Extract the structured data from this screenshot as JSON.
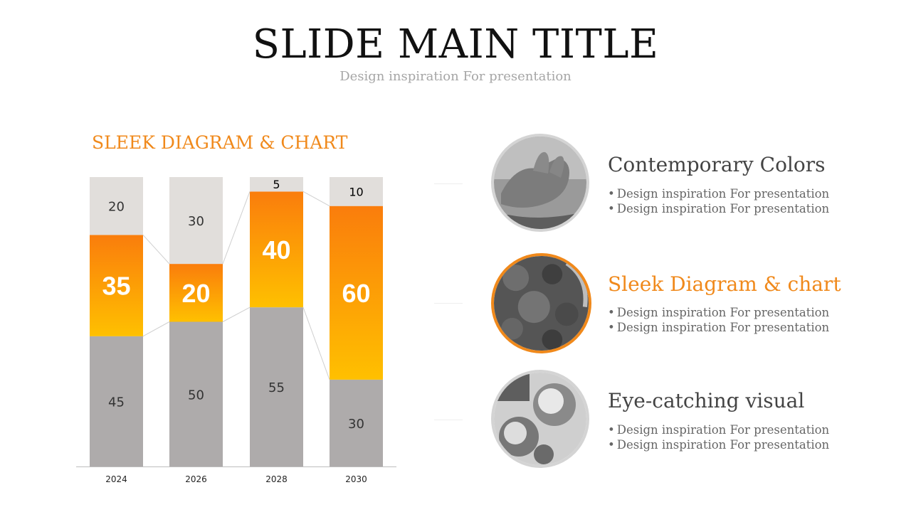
{
  "slide": {
    "title": "SLIDE MAIN TITLE",
    "subtitle": "Design inspiration For presentation"
  },
  "chart_section": {
    "heading": "SLEEK DIAGRAM  & CHART"
  },
  "chart_data": {
    "type": "bar",
    "stacked": true,
    "categories": [
      "2024",
      "2026",
      "2028",
      "2030"
    ],
    "series": [
      {
        "values": [
          45,
          50,
          55,
          30
        ],
        "color": "#aeabab"
      },
      {
        "values": [
          35,
          20,
          40,
          60
        ],
        "color_gradient": [
          "#fa7d0c",
          "#ffc000"
        ]
      },
      {
        "values": [
          20,
          30,
          5,
          10
        ],
        "color": "#e1dedb"
      }
    ],
    "ylim": [
      0,
      100
    ],
    "grid": false,
    "legend": "none"
  },
  "features": [
    {
      "title": "Contemporary Colors",
      "bullets": [
        "Design inspiration For presentation",
        "Design inspiration For presentation"
      ],
      "accent": false
    },
    {
      "title": "Sleek Diagram & chart",
      "bullets": [
        "Design inspiration For presentation",
        "Design inspiration For presentation"
      ],
      "accent": true
    },
    {
      "title": "Eye-catching visual",
      "bullets": [
        "Design inspiration For presentation",
        "Design inspiration For presentation"
      ],
      "accent": false
    }
  ],
  "colors": {
    "accent": "#f0891b",
    "gray_bar": "#aeabab",
    "light_bar": "#e1dedb"
  }
}
